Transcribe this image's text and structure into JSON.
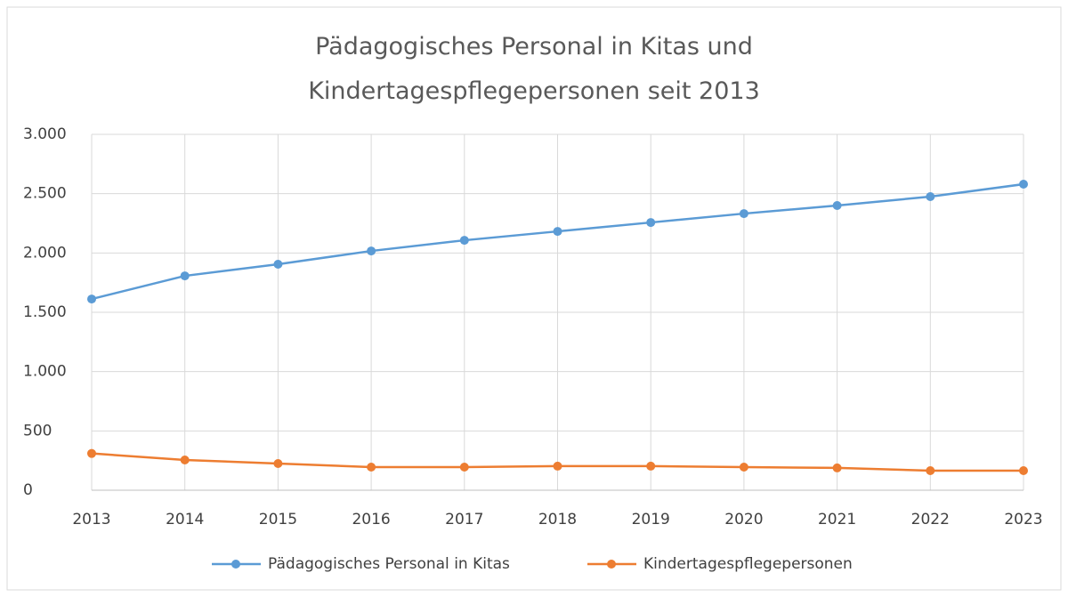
{
  "chart_data": {
    "type": "line",
    "title": "Pädagogisches Personal in Kitas und Kindertagespflegepersonen seit 2013",
    "categories": [
      "2013",
      "2014",
      "2015",
      "2016",
      "2017",
      "2018",
      "2019",
      "2020",
      "2021",
      "2022",
      "2023"
    ],
    "series": [
      {
        "name": "Pädagogisches Personal in Kitas",
        "color": "#5b9bd5",
        "values": [
          1612,
          1807,
          1905,
          2017,
          2107,
          2182,
          2257,
          2332,
          2400,
          2475,
          2580
        ]
      },
      {
        "name": "Kindertagespflegepersonen",
        "color": "#ed7d31",
        "values": [
          310,
          255,
          225,
          195,
          195,
          203,
          203,
          195,
          188,
          165,
          165
        ]
      }
    ],
    "ylim": [
      0,
      3000
    ],
    "yticks": [
      0,
      500,
      {
        "value": 1000,
        "label": "1.000"
      },
      {
        "value": 1500,
        "label": "1.500"
      },
      {
        "value": 2000,
        "label": "2.000"
      },
      {
        "value": 2500,
        "label": "2.500"
      },
      {
        "value": 3000,
        "label": "3.000"
      }
    ],
    "grid": true,
    "legend": "bottom"
  }
}
